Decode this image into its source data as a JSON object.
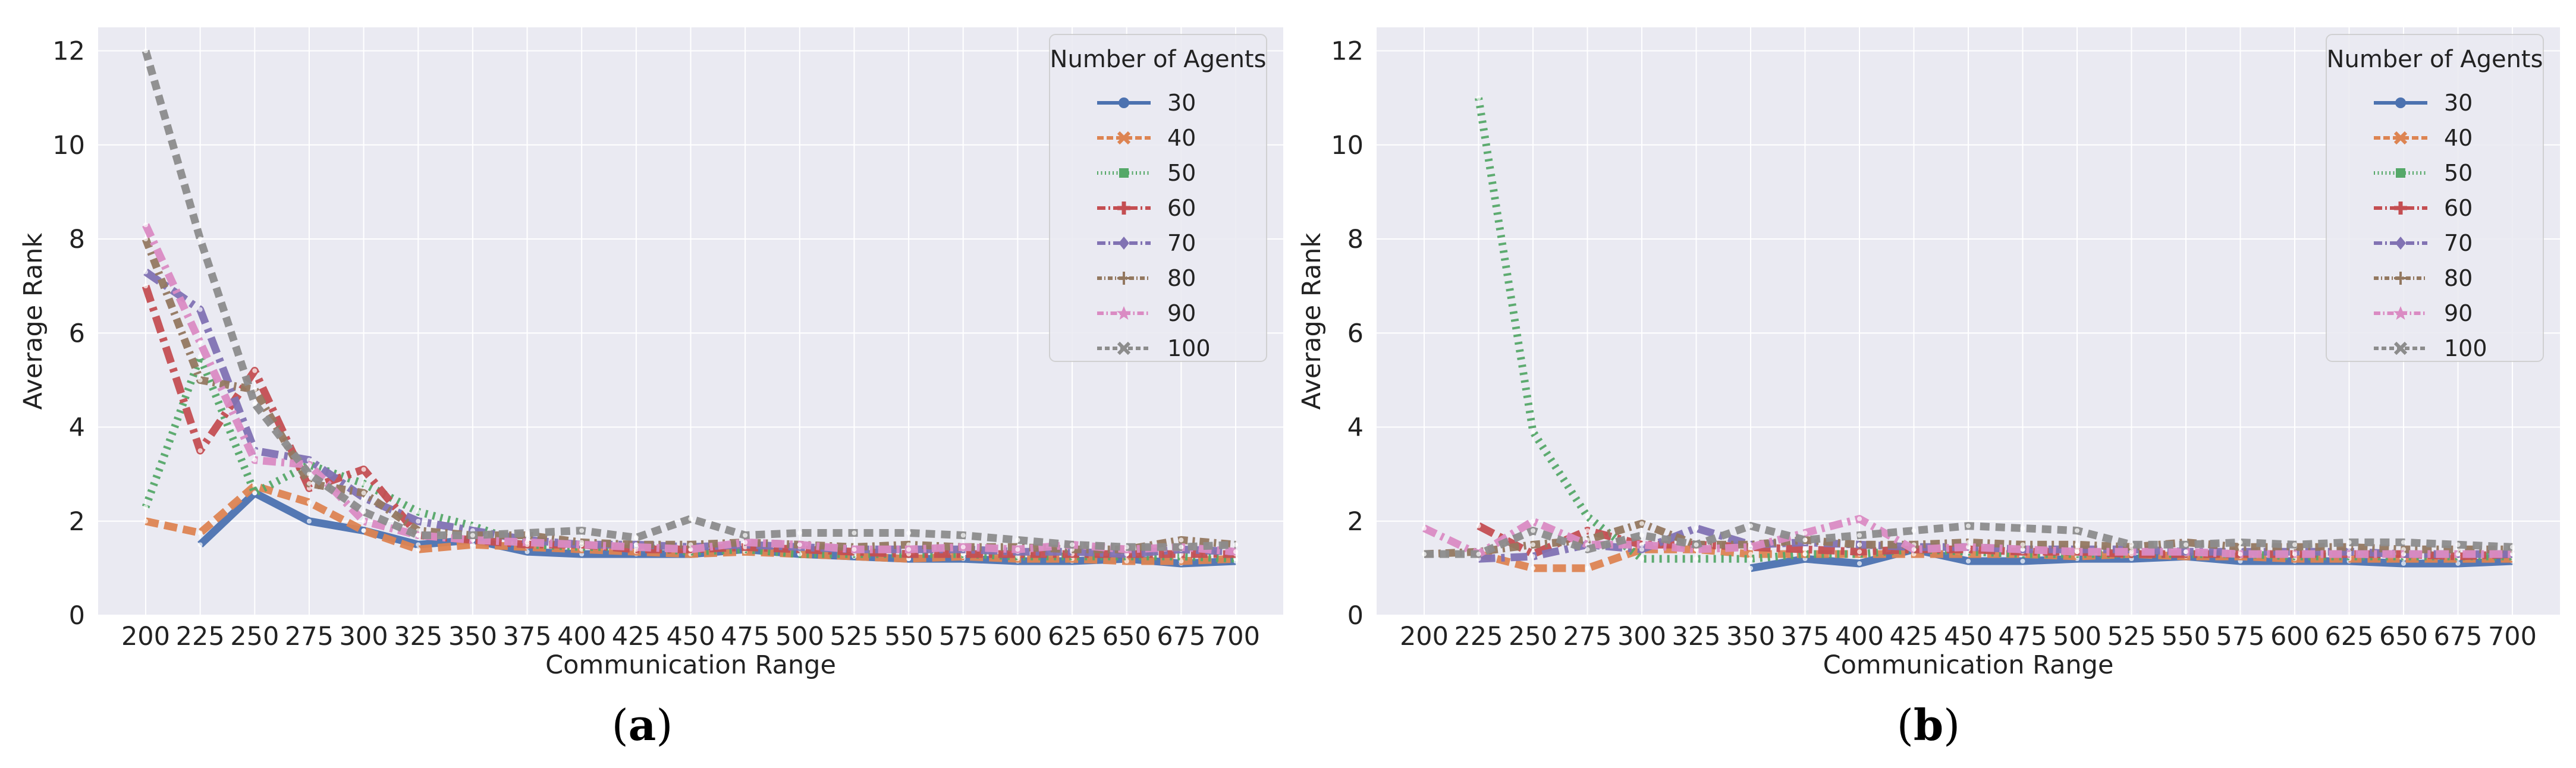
{
  "colors": {
    "30": "#4c72b0",
    "40": "#dd8452",
    "50": "#55a868",
    "60": "#c44e52",
    "70": "#8172b3",
    "80": "#937860",
    "90": "#da8bc3",
    "100": "#8c8c8c",
    "background": "#eaeaf2",
    "grid": "#ffffff"
  },
  "chart_data": [
    {
      "type": "line",
      "caption": "(a)",
      "caption_letter": "a",
      "xlabel": "Communication Range",
      "ylabel": "Average Rank",
      "ylim": [
        0,
        12.5
      ],
      "yticks": [
        0,
        2,
        4,
        6,
        8,
        10,
        12
      ],
      "x": [
        200,
        225,
        250,
        275,
        300,
        325,
        350,
        375,
        400,
        425,
        450,
        475,
        500,
        525,
        550,
        575,
        600,
        625,
        650,
        675,
        700
      ],
      "legend_title": "Number of Agents",
      "series": [
        {
          "name": "30",
          "values": [
            null,
            1.5,
            2.6,
            2.0,
            1.8,
            1.5,
            1.6,
            1.35,
            1.3,
            1.3,
            1.3,
            1.4,
            1.3,
            1.25,
            1.2,
            1.2,
            1.15,
            1.15,
            1.2,
            1.1,
            1.15
          ]
        },
        {
          "name": "40",
          "values": [
            2.0,
            1.75,
            2.75,
            2.4,
            1.8,
            1.4,
            1.5,
            1.45,
            1.4,
            1.35,
            1.3,
            1.35,
            1.3,
            1.25,
            1.2,
            1.25,
            1.2,
            1.2,
            1.15,
            1.15,
            1.2
          ]
        },
        {
          "name": "50",
          "values": [
            2.3,
            5.5,
            2.6,
            3.2,
            2.8,
            2.2,
            1.9,
            1.5,
            1.45,
            1.45,
            1.35,
            1.4,
            1.3,
            1.3,
            1.3,
            1.3,
            1.25,
            1.25,
            1.25,
            1.25,
            1.2
          ]
        },
        {
          "name": "60",
          "values": [
            7.0,
            3.5,
            5.2,
            2.7,
            3.1,
            1.7,
            1.6,
            1.5,
            1.5,
            1.4,
            1.4,
            1.45,
            1.4,
            1.35,
            1.3,
            1.3,
            1.3,
            1.3,
            1.3,
            1.3,
            1.3
          ]
        },
        {
          "name": "70",
          "values": [
            7.3,
            6.5,
            3.5,
            3.3,
            2.5,
            2.0,
            1.8,
            1.6,
            1.5,
            1.5,
            1.45,
            1.5,
            1.45,
            1.4,
            1.4,
            1.4,
            1.35,
            1.35,
            1.3,
            1.4,
            1.35
          ]
        },
        {
          "name": "80",
          "values": [
            8.0,
            5.0,
            4.8,
            2.8,
            2.6,
            1.8,
            1.7,
            1.7,
            1.55,
            1.5,
            1.5,
            1.55,
            1.5,
            1.45,
            1.5,
            1.45,
            1.45,
            1.4,
            1.4,
            1.6,
            1.5
          ]
        },
        {
          "name": "90",
          "values": [
            8.3,
            5.8,
            3.3,
            3.2,
            2.0,
            1.7,
            1.6,
            1.55,
            1.5,
            1.45,
            1.4,
            1.55,
            1.5,
            1.4,
            1.4,
            1.45,
            1.4,
            1.5,
            1.4,
            1.45,
            1.35
          ]
        },
        {
          "name": "100",
          "values": [
            12.0,
            8.0,
            4.5,
            3.0,
            2.2,
            1.7,
            1.7,
            1.75,
            1.8,
            1.65,
            2.05,
            1.7,
            1.75,
            1.75,
            1.75,
            1.7,
            1.6,
            1.5,
            1.45,
            1.45,
            1.5
          ]
        }
      ]
    },
    {
      "type": "line",
      "caption": "(b)",
      "caption_letter": "b",
      "xlabel": "Communication Range",
      "ylabel": "Average Rank",
      "ylim": [
        0,
        12.5
      ],
      "yticks": [
        0,
        2,
        4,
        6,
        8,
        10,
        12
      ],
      "x": [
        200,
        225,
        250,
        275,
        300,
        325,
        350,
        375,
        400,
        425,
        450,
        475,
        500,
        525,
        550,
        575,
        600,
        625,
        650,
        675,
        700
      ],
      "legend_title": "Number of Agents",
      "series": [
        {
          "name": "30",
          "values": [
            null,
            null,
            null,
            null,
            null,
            null,
            1.0,
            1.2,
            1.1,
            1.4,
            1.15,
            1.15,
            1.2,
            1.2,
            1.25,
            1.15,
            1.15,
            1.15,
            1.1,
            1.1,
            1.15
          ]
        },
        {
          "name": "40",
          "values": [
            null,
            1.3,
            1.0,
            1.0,
            1.4,
            1.4,
            1.3,
            1.3,
            1.3,
            1.3,
            1.3,
            1.3,
            1.25,
            1.3,
            1.25,
            1.25,
            1.2,
            1.2,
            1.2,
            1.2,
            1.2
          ]
        },
        {
          "name": "50",
          "values": [
            null,
            11.0,
            3.9,
            2.1,
            1.2,
            1.2,
            1.2,
            1.3,
            1.3,
            1.4,
            1.35,
            1.3,
            1.3,
            1.3,
            1.3,
            1.3,
            1.25,
            1.25,
            1.25,
            1.25,
            1.25
          ]
        },
        {
          "name": "60",
          "values": [
            null,
            1.9,
            1.3,
            1.8,
            1.5,
            1.5,
            1.45,
            1.4,
            1.35,
            1.4,
            1.4,
            1.35,
            1.35,
            1.3,
            1.3,
            1.3,
            1.3,
            1.3,
            1.3,
            1.25,
            1.3
          ]
        },
        {
          "name": "70",
          "values": [
            null,
            1.2,
            1.25,
            1.5,
            1.4,
            1.85,
            1.5,
            1.55,
            1.5,
            1.45,
            1.45,
            1.4,
            1.4,
            1.4,
            1.35,
            1.35,
            1.35,
            1.35,
            1.3,
            1.3,
            1.3
          ]
        },
        {
          "name": "80",
          "values": [
            1.3,
            1.35,
            1.5,
            1.6,
            1.95,
            1.5,
            1.5,
            1.6,
            1.5,
            1.5,
            1.55,
            1.5,
            1.5,
            1.45,
            1.55,
            1.45,
            1.45,
            1.45,
            1.4,
            1.4,
            1.4
          ]
        },
        {
          "name": "90",
          "values": [
            1.85,
            1.3,
            2.0,
            1.5,
            1.5,
            1.4,
            1.45,
            1.75,
            2.05,
            1.4,
            1.45,
            1.4,
            1.35,
            1.35,
            1.35,
            1.3,
            1.3,
            1.3,
            1.3,
            1.3,
            1.3
          ]
        },
        {
          "name": "100",
          "values": [
            1.3,
            1.3,
            1.8,
            1.4,
            1.7,
            1.5,
            1.9,
            1.6,
            1.7,
            1.8,
            1.9,
            1.85,
            1.8,
            1.5,
            1.5,
            1.55,
            1.5,
            1.55,
            1.55,
            1.5,
            1.45
          ]
        }
      ]
    }
  ]
}
